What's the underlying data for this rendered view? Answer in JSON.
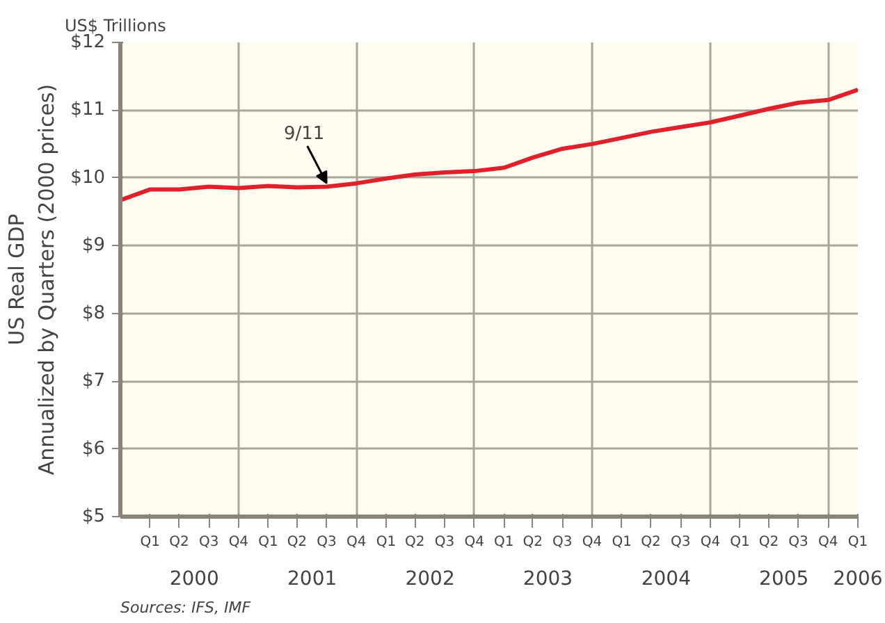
{
  "chart_data": {
    "type": "line",
    "title": "US$ Trillions",
    "ylabel": "US Real GDP\nAnnualized by Quarters (2000 prices)",
    "x": [
      "1999-11-15",
      "2000-02-15",
      "2000-05-15",
      "2000-08-15",
      "2000-11-15",
      "2001-02-15",
      "2001-05-15",
      "2001-08-15",
      "2001-11-15",
      "2002-02-15",
      "2002-05-15",
      "2002-08-15",
      "2002-11-15",
      "2003-02-15",
      "2003-05-15",
      "2003-08-15",
      "2003-11-15",
      "2004-02-15",
      "2004-05-15",
      "2004-08-15",
      "2004-11-15",
      "2005-02-15",
      "2005-05-15",
      "2005-08-15",
      "2005-11-15",
      "2006-02-15"
    ],
    "series": [
      {
        "color": "#e0202a",
        "values": [
          9.67,
          9.83,
          9.83,
          9.87,
          9.85,
          9.88,
          9.86,
          9.87,
          9.92,
          9.99,
          10.05,
          10.08,
          10.1,
          10.15,
          10.3,
          10.43,
          10.5,
          10.59,
          10.68,
          10.75,
          10.82,
          10.92,
          11.02,
          11.11,
          11.15,
          11.3
        ]
      }
    ],
    "xlim": [
      "1999-11-15",
      "2006-02-15"
    ],
    "xticks": [
      {
        "value": "2000-02-15",
        "label": "Q1"
      },
      {
        "value": "2000-05-15",
        "label": "Q2"
      },
      {
        "value": "2000-08-15",
        "label": "Q3"
      },
      {
        "value": "2000-11-15",
        "label": "Q4"
      },
      {
        "value": "2001-02-15",
        "label": "Q1"
      },
      {
        "value": "2001-05-15",
        "label": "Q2"
      },
      {
        "value": "2001-08-15",
        "label": "Q3"
      },
      {
        "value": "2001-11-15",
        "label": "Q4"
      },
      {
        "value": "2002-02-15",
        "label": "Q1"
      },
      {
        "value": "2002-05-15",
        "label": "Q2"
      },
      {
        "value": "2002-08-15",
        "label": "Q3"
      },
      {
        "value": "2002-11-15",
        "label": "Q4"
      },
      {
        "value": "2003-02-15",
        "label": "Q1"
      },
      {
        "value": "2003-05-15",
        "label": "Q2"
      },
      {
        "value": "2003-08-15",
        "label": "Q3"
      },
      {
        "value": "2003-11-15",
        "label": "Q4"
      },
      {
        "value": "2004-02-15",
        "label": "Q1"
      },
      {
        "value": "2004-05-15",
        "label": "Q2"
      },
      {
        "value": "2004-08-15",
        "label": "Q3"
      },
      {
        "value": "2004-11-15",
        "label": "Q4"
      },
      {
        "value": "2005-02-15",
        "label": "Q1"
      },
      {
        "value": "2005-05-15",
        "label": "Q2"
      },
      {
        "value": "2005-08-15",
        "label": "Q3"
      },
      {
        "value": "2005-11-15",
        "label": "Q4"
      },
      {
        "value": "2006-02-15",
        "label": "Q1"
      }
    ],
    "x2lim": [
      "1999-11-15",
      "2006-02-15"
    ],
    "x2ticks": [
      {
        "value": "2000-07-01",
        "label": "2000"
      },
      {
        "value": "2001-07-01",
        "label": "2001"
      },
      {
        "value": "2002-07-01",
        "label": "2002"
      },
      {
        "value": "2003-07-01",
        "label": "2003"
      },
      {
        "value": "2004-07-01",
        "label": "2004"
      },
      {
        "value": "2005-07-01",
        "label": "2005"
      },
      {
        "value": "2006-02-15",
        "label": "2006"
      }
    ],
    "ylim": [
      5,
      12
    ],
    "yticks": [
      {
        "value": 5,
        "label": "$5"
      },
      {
        "value": 6,
        "label": "$6"
      },
      {
        "value": 7,
        "label": "$7"
      },
      {
        "value": 8,
        "label": "$8"
      },
      {
        "value": 9,
        "label": "$9"
      },
      {
        "value": 10,
        "label": "$10"
      },
      {
        "value": 11,
        "label": "$11"
      },
      {
        "value": 12,
        "label": "$12"
      }
    ],
    "grid": true,
    "marker": "none",
    "line_style": "solid",
    "annotations": [
      {
        "text": "9/11",
        "x": "2001-08-15",
        "y": 9.87
      },
      "Sources: IFS, IMF"
    ]
  }
}
